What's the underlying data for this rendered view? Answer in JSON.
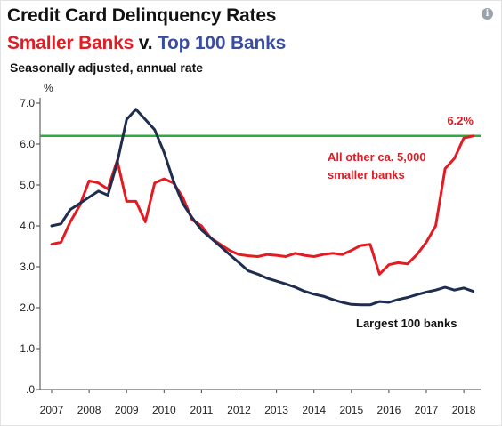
{
  "header": {
    "title": "Credit Card Delinquency Rates",
    "subtitle_part1": "Smaller Banks",
    "subtitle_part2": " v. ",
    "subtitle_part3": "Top 100 Banks",
    "note": "Seasonally adjusted, annual rate",
    "info_icon": "info-icon"
  },
  "colors": {
    "smaller_banks": "#e31b23",
    "top_100": "#1f2d4f",
    "reference_line": "#2eab3f",
    "axis": "#444444"
  },
  "chart_data": {
    "type": "line",
    "title": "Credit Card Delinquency Rates",
    "subtitle": "Smaller Banks v. Top 100 Banks",
    "ylabel": "%",
    "ylim": [
      0,
      7.0
    ],
    "xlim": [
      2007,
      2018.25
    ],
    "y_tick_labels": [
      ".0",
      "1.0",
      "2.0",
      "3.0",
      "4.0",
      "5.0",
      "6.0",
      "7.0"
    ],
    "x_tick_labels": [
      "2007",
      "2008",
      "2009",
      "2010",
      "2011",
      "2012",
      "2013",
      "2014",
      "2015",
      "2016",
      "2017",
      "2018"
    ],
    "reference_line": {
      "value": 6.2,
      "label": "6.2%"
    },
    "annotations": {
      "smaller": "All other ca. 5,000 smaller banks",
      "smaller_line1": "All other ca. 5,000",
      "smaller_line2": "smaller banks",
      "largest": "Largest 100 banks"
    },
    "series": [
      {
        "key": "smaller",
        "color": "#e31b23",
        "x": [
          2007.0,
          2007.25,
          2007.5,
          2007.75,
          2008.0,
          2008.25,
          2008.5,
          2008.75,
          2009.0,
          2009.25,
          2009.5,
          2009.75,
          2010.0,
          2010.25,
          2010.5,
          2010.75,
          2011.0,
          2011.25,
          2011.5,
          2011.75,
          2012.0,
          2012.25,
          2012.5,
          2012.75,
          2013.0,
          2013.25,
          2013.5,
          2013.75,
          2014.0,
          2014.25,
          2014.5,
          2014.75,
          2015.0,
          2015.25,
          2015.5,
          2015.75,
          2016.0,
          2016.25,
          2016.5,
          2016.75,
          2017.0,
          2017.25,
          2017.5,
          2017.75,
          2018.0,
          2018.25
        ],
        "values": [
          3.55,
          3.6,
          4.1,
          4.5,
          5.1,
          5.05,
          4.9,
          5.6,
          4.6,
          4.6,
          4.1,
          5.05,
          5.15,
          5.05,
          4.7,
          4.15,
          4.0,
          3.7,
          3.55,
          3.4,
          3.3,
          3.27,
          3.25,
          3.3,
          3.28,
          3.25,
          3.33,
          3.28,
          3.25,
          3.3,
          3.33,
          3.3,
          3.4,
          3.52,
          3.55,
          2.82,
          3.05,
          3.1,
          3.07,
          3.3,
          3.6,
          4.0,
          5.4,
          5.65,
          6.15,
          6.2
        ]
      },
      {
        "key": "top100",
        "color": "#1f2d4f",
        "x": [
          2007.0,
          2007.25,
          2007.5,
          2007.75,
          2008.0,
          2008.25,
          2008.5,
          2008.75,
          2009.0,
          2009.25,
          2009.5,
          2009.75,
          2010.0,
          2010.25,
          2010.5,
          2010.75,
          2011.0,
          2011.25,
          2011.5,
          2011.75,
          2012.0,
          2012.25,
          2012.5,
          2012.75,
          2013.0,
          2013.25,
          2013.5,
          2013.75,
          2014.0,
          2014.25,
          2014.5,
          2014.75,
          2015.0,
          2015.25,
          2015.5,
          2015.75,
          2016.0,
          2016.25,
          2016.5,
          2016.75,
          2017.0,
          2017.25,
          2017.5,
          2017.75,
          2018.0,
          2018.25
        ],
        "values": [
          4.0,
          4.05,
          4.4,
          4.55,
          4.7,
          4.85,
          4.75,
          5.55,
          6.6,
          6.85,
          6.6,
          6.35,
          5.8,
          5.1,
          4.55,
          4.2,
          3.9,
          3.7,
          3.5,
          3.3,
          3.1,
          2.9,
          2.82,
          2.72,
          2.65,
          2.58,
          2.5,
          2.4,
          2.33,
          2.28,
          2.2,
          2.13,
          2.08,
          2.07,
          2.07,
          2.15,
          2.13,
          2.2,
          2.25,
          2.32,
          2.38,
          2.43,
          2.5,
          2.43,
          2.48,
          2.4
        ]
      }
    ]
  }
}
